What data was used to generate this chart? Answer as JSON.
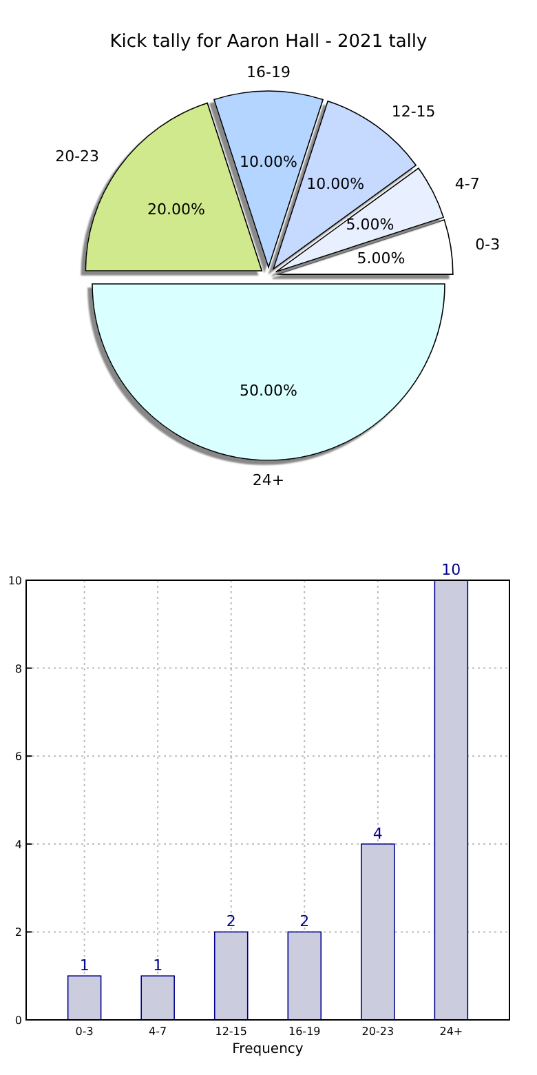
{
  "chart_data": [
    {
      "type": "pie",
      "title": "Kick tally for Aaron Hall - 2021 tally",
      "categories": [
        "0-3",
        "4-7",
        "12-15",
        "16-19",
        "20-23",
        "24+"
      ],
      "values": [
        5,
        5,
        10,
        10,
        20,
        50
      ],
      "colors": [
        "#ffffff",
        "#e8f0ff",
        "#c6d9ff",
        "#b3d5ff",
        "#d0e98c",
        "#d9ffff"
      ],
      "value_labels": [
        "5.00%",
        "5.00%",
        "10.00%",
        "10.00%",
        "20.00%",
        "50.00%"
      ]
    },
    {
      "type": "bar",
      "categories": [
        "0-3",
        "4-7",
        "12-15",
        "16-19",
        "20-23",
        "24+"
      ],
      "values": [
        1,
        1,
        2,
        2,
        4,
        10
      ],
      "color": "#ccccdf",
      "xlabel": "Frequency",
      "ylim": [
        0,
        10
      ],
      "yticks": [
        0,
        2,
        4,
        6,
        8,
        10
      ],
      "grid": true,
      "data_labels": true
    }
  ]
}
